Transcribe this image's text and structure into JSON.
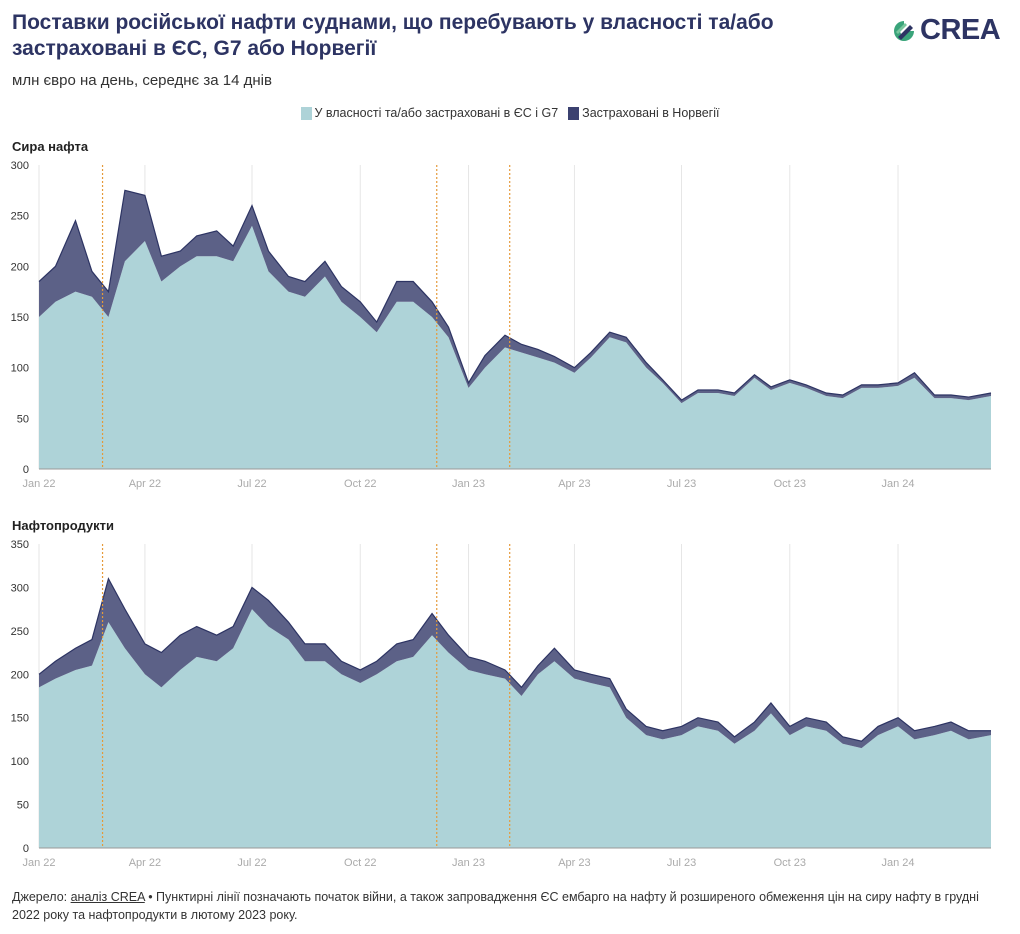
{
  "header": {
    "title": "Поставки російської нафти суднами, що перебувають у власності та/або застраховані в ЄС, G7 або Норвегії",
    "subtitle": "млн євро на день, середнє за 14 днів",
    "logo_text": "CREA"
  },
  "legend": [
    {
      "label": "У власності та/або застраховані в ЄС і G7",
      "color": "#aed3d8"
    },
    {
      "label": "Застраховані в Норвегії",
      "color": "#3b4170"
    }
  ],
  "footer": {
    "source_prefix": "Джерело: ",
    "source_link": "аналіз CREA",
    "note": " • Пунктирні лінії позначають початок війни, а також запровадження ЄС ембарго на нафту й розширеного обмеження цін на сиру нафту в грудні 2022 року та нафтопродукти в лютому 2023 року."
  },
  "chart_data": [
    {
      "type": "area",
      "stacked": true,
      "title": "Сира нафта",
      "xlabel": "",
      "ylabel": "млн євро на день",
      "x_ticks": [
        "Jan 22",
        "Apr 22",
        "Jul 22",
        "Oct 22",
        "Jan 23",
        "Apr 23",
        "Jul 23",
        "Oct 23",
        "Jan 24"
      ],
      "x_range": [
        "2022-01-01",
        "2024-03-20"
      ],
      "ylim": [
        0,
        300
      ],
      "y_ticks": [
        0,
        50,
        100,
        150,
        200,
        250,
        300
      ],
      "grid": true,
      "events": [
        "2022-02-24",
        "2022-12-05",
        "2023-02-05"
      ],
      "x": [
        "2022-01-01",
        "2022-01-15",
        "2022-02-01",
        "2022-02-15",
        "2022-03-01",
        "2022-03-15",
        "2022-04-01",
        "2022-04-15",
        "2022-05-01",
        "2022-05-15",
        "2022-06-01",
        "2022-06-15",
        "2022-07-01",
        "2022-07-15",
        "2022-08-01",
        "2022-08-15",
        "2022-09-01",
        "2022-09-15",
        "2022-10-01",
        "2022-10-15",
        "2022-11-01",
        "2022-11-15",
        "2022-12-01",
        "2022-12-15",
        "2023-01-01",
        "2023-01-15",
        "2023-02-01",
        "2023-02-15",
        "2023-03-01",
        "2023-03-15",
        "2023-04-01",
        "2023-04-15",
        "2023-05-01",
        "2023-05-15",
        "2023-06-01",
        "2023-06-15",
        "2023-07-01",
        "2023-07-15",
        "2023-08-01",
        "2023-08-15",
        "2023-09-01",
        "2023-09-15",
        "2023-10-01",
        "2023-10-15",
        "2023-11-01",
        "2023-11-15",
        "2023-12-01",
        "2023-12-15",
        "2024-01-01",
        "2024-01-15",
        "2024-02-01",
        "2024-02-15",
        "2024-03-01",
        "2024-03-20"
      ],
      "series": [
        {
          "name": "У власності та/або застраховані в ЄС і G7",
          "values": [
            150,
            165,
            175,
            170,
            150,
            205,
            225,
            185,
            200,
            210,
            210,
            205,
            240,
            195,
            175,
            170,
            190,
            165,
            150,
            135,
            165,
            165,
            150,
            130,
            80,
            100,
            120,
            115,
            110,
            105,
            95,
            110,
            130,
            125,
            100,
            85,
            65,
            75,
            75,
            72,
            90,
            78,
            85,
            80,
            72,
            70,
            80,
            80,
            82,
            90,
            70,
            70,
            68,
            72
          ]
        },
        {
          "name": "Застраховані в Норвегії",
          "values": [
            35,
            35,
            70,
            25,
            25,
            70,
            45,
            25,
            15,
            20,
            25,
            15,
            20,
            20,
            15,
            15,
            15,
            15,
            15,
            10,
            20,
            20,
            15,
            10,
            5,
            12,
            12,
            8,
            8,
            6,
            5,
            5,
            5,
            5,
            5,
            3,
            3,
            3,
            3,
            3,
            3,
            3,
            3,
            3,
            3,
            3,
            3,
            3,
            3,
            5,
            3,
            3,
            3,
            3
          ]
        }
      ]
    },
    {
      "type": "area",
      "stacked": true,
      "title": "Нафтопродукти",
      "xlabel": "",
      "ylabel": "млн євро на день",
      "x_ticks": [
        "Jan 22",
        "Apr 22",
        "Jul 22",
        "Oct 22",
        "Jan 23",
        "Apr 23",
        "Jul 23",
        "Oct 23",
        "Jan 24"
      ],
      "x_range": [
        "2022-01-01",
        "2024-03-20"
      ],
      "ylim": [
        0,
        350
      ],
      "y_ticks": [
        0,
        50,
        100,
        150,
        200,
        250,
        300,
        350
      ],
      "grid": true,
      "events": [
        "2022-02-24",
        "2022-12-05",
        "2023-02-05"
      ],
      "x": [
        "2022-01-01",
        "2022-01-15",
        "2022-02-01",
        "2022-02-15",
        "2022-03-01",
        "2022-03-15",
        "2022-04-01",
        "2022-04-15",
        "2022-05-01",
        "2022-05-15",
        "2022-06-01",
        "2022-06-15",
        "2022-07-01",
        "2022-07-15",
        "2022-08-01",
        "2022-08-15",
        "2022-09-01",
        "2022-09-15",
        "2022-10-01",
        "2022-10-15",
        "2022-11-01",
        "2022-11-15",
        "2022-12-01",
        "2022-12-15",
        "2023-01-01",
        "2023-01-15",
        "2023-02-01",
        "2023-02-15",
        "2023-03-01",
        "2023-03-15",
        "2023-04-01",
        "2023-04-15",
        "2023-05-01",
        "2023-05-15",
        "2023-06-01",
        "2023-06-15",
        "2023-07-01",
        "2023-07-15",
        "2023-08-01",
        "2023-08-15",
        "2023-09-01",
        "2023-09-15",
        "2023-10-01",
        "2023-10-15",
        "2023-11-01",
        "2023-11-15",
        "2023-12-01",
        "2023-12-15",
        "2024-01-01",
        "2024-01-15",
        "2024-02-01",
        "2024-02-15",
        "2024-03-01",
        "2024-03-20"
      ],
      "series": [
        {
          "name": "У власності та/або застраховані в ЄС і G7",
          "values": [
            185,
            195,
            205,
            210,
            260,
            230,
            200,
            185,
            205,
            220,
            215,
            230,
            275,
            255,
            240,
            215,
            215,
            200,
            190,
            200,
            215,
            220,
            245,
            225,
            205,
            200,
            195,
            175,
            200,
            215,
            195,
            190,
            185,
            150,
            130,
            125,
            130,
            140,
            135,
            120,
            135,
            155,
            130,
            140,
            135,
            120,
            115,
            130,
            140,
            125,
            130,
            135,
            125,
            130
          ]
        },
        {
          "name": "Застраховані в Норвегії",
          "values": [
            15,
            20,
            25,
            30,
            50,
            45,
            35,
            40,
            40,
            35,
            30,
            25,
            25,
            30,
            20,
            20,
            20,
            15,
            15,
            15,
            20,
            20,
            25,
            20,
            15,
            15,
            10,
            10,
            10,
            15,
            10,
            10,
            10,
            10,
            10,
            10,
            10,
            10,
            10,
            8,
            10,
            12,
            10,
            10,
            10,
            8,
            8,
            10,
            10,
            10,
            10,
            10,
            10,
            5
          ]
        }
      ]
    }
  ]
}
